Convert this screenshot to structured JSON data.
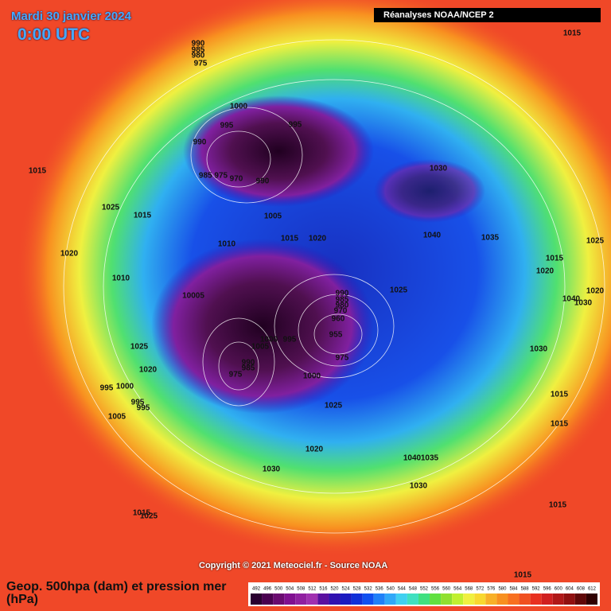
{
  "header": {
    "date": "Mardi 30 janvier 2024",
    "time": "0:00 UTC",
    "source": "Réanalyses NOAA/NCEP 2"
  },
  "footer": {
    "copyright": "Copyright © 2021 Meteociel.fr - Source NOAA",
    "legend_title": "Geop. 500hpa (dam) et pression mer (hPa)"
  },
  "scale": {
    "labels": [
      "492",
      "496",
      "500",
      "504",
      "508",
      "512",
      "516",
      "520",
      "524",
      "528",
      "532",
      "536",
      "540",
      "544",
      "548",
      "552",
      "556",
      "560",
      "564",
      "568",
      "572",
      "576",
      "580",
      "584",
      "588",
      "592",
      "596",
      "600",
      "604",
      "608",
      "612"
    ],
    "colors": [
      "#2a0030",
      "#4a0050",
      "#6a0a70",
      "#801090",
      "#9020a0",
      "#a030b0",
      "#5a10a0",
      "#3010b0",
      "#1a1ac0",
      "#1030d8",
      "#1050f0",
      "#2080f8",
      "#30a8f8",
      "#40d0f0",
      "#40e0c0",
      "#40e080",
      "#60e040",
      "#90e030",
      "#c0f030",
      "#f0f040",
      "#f8d830",
      "#f8b028",
      "#f89020",
      "#f87020",
      "#f05020",
      "#e83020",
      "#d02020",
      "#b01818",
      "#901010",
      "#600808",
      "#300000"
    ]
  },
  "isobars": [
    "990",
    "985",
    "980",
    "975",
    "1000",
    "995",
    "995",
    "990",
    "985 975",
    "970",
    "990",
    "1030",
    "1005",
    "1015",
    "1020",
    "1040",
    "1035",
    "1010",
    "1015",
    "1025",
    "1015",
    "1020",
    "1010",
    "10005",
    "990",
    "985",
    "980",
    "970",
    "960",
    "955",
    "1000",
    "995",
    "1005",
    "975",
    "1025",
    "1025",
    "1020",
    "990",
    "985",
    "975",
    "1000",
    "995",
    "1000",
    "995",
    "995",
    "1005",
    "1025",
    "1020",
    "1040",
    "1035",
    "1030",
    "1030",
    "1015",
    "1025",
    "1015",
    "1025",
    "1015",
    "1020",
    "1020",
    "1040",
    "1030",
    "1030",
    "1015",
    "1015",
    "1015",
    "1015"
  ]
}
